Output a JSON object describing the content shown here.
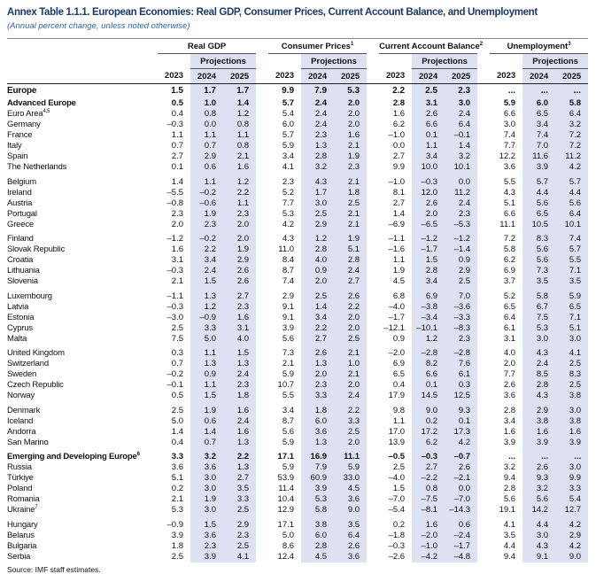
{
  "header": {
    "title": "Annex Table 1.1.1. European Economies: Real GDP, Consumer Prices, Current Account Balance, and Unemployment",
    "subtitle": "(Annual percent change, unless noted otherwise)"
  },
  "columns": [
    {
      "name": "Real GDP",
      "projections": "Projections",
      "years": [
        "2023",
        "2024",
        "2025"
      ]
    },
    {
      "name": "Consumer Prices",
      "sup": "1",
      "projections": "Projections",
      "years": [
        "2023",
        "2024",
        "2025"
      ]
    },
    {
      "name": "Current Account Balance",
      "sup": "2",
      "projections": "Projections",
      "years": [
        "2023",
        "2024",
        "2025"
      ]
    },
    {
      "name": "Unemployment",
      "sup": "3",
      "projections": "Projections",
      "years": [
        "2023",
        "2024",
        "2025"
      ]
    }
  ],
  "europe": {
    "label": "Europe",
    "values": [
      "1.5",
      "1.7",
      "1.7",
      "9.9",
      "7.9",
      "5.3",
      "2.2",
      "2.5",
      "2.3",
      "...",
      "...",
      "..."
    ]
  },
  "advanced_europe": {
    "label": "Advanced Europe",
    "values": [
      "0.5",
      "1.0",
      "1.4",
      "5.7",
      "2.4",
      "2.0",
      "2.8",
      "3.1",
      "3.0",
      "5.9",
      "6.0",
      "5.8"
    ],
    "euro_area": {
      "label": "Euro Area",
      "sup": "4,5",
      "values": [
        "0.4",
        "0.8",
        "1.2",
        "5.4",
        "2.4",
        "2.0",
        "1.6",
        "2.6",
        "2.4",
        "6.6",
        "6.5",
        "6.4"
      ],
      "groups": [
        [
          {
            "label": "Germany",
            "values": [
              "–0.3",
              "0.0",
              "0.8",
              "6.0",
              "2.4",
              "2.0",
              "6.2",
              "6.6",
              "6.4",
              "3.0",
              "3.4",
              "3.2"
            ]
          },
          {
            "label": "France",
            "values": [
              "1.1",
              "1.1",
              "1.1",
              "5.7",
              "2.3",
              "1.6",
              "–1.0",
              "0.1",
              "–0.1",
              "7.4",
              "7.4",
              "7.2"
            ]
          },
          {
            "label": "Italy",
            "values": [
              "0.7",
              "0.7",
              "0.8",
              "5.9",
              "1.3",
              "2.1",
              "0.0",
              "1.1",
              "1.4",
              "7.7",
              "7.0",
              "7.2"
            ]
          },
          {
            "label": "Spain",
            "values": [
              "2.7",
              "2.9",
              "2.1",
              "3.4",
              "2.8",
              "1.9",
              "2.7",
              "3.4",
              "3.2",
              "12.2",
              "11.6",
              "11.2"
            ]
          },
          {
            "label": "The Netherlands",
            "values": [
              "0.1",
              "0.6",
              "1.6",
              "4.1",
              "3.2",
              "2.3",
              "9.9",
              "10.0",
              "10.1",
              "3.6",
              "3.9",
              "4.2"
            ]
          }
        ],
        [
          {
            "label": "Belgium",
            "values": [
              "1.4",
              "1.1",
              "1.2",
              "2.3",
              "4.3",
              "2.1",
              "–1.0",
              "–0.3",
              "0.0",
              "5.5",
              "5.7",
              "5.7"
            ]
          },
          {
            "label": "Ireland",
            "values": [
              "–5.5",
              "–0.2",
              "2.2",
              "5.2",
              "1.7",
              "1.8",
              "8.1",
              "12.0",
              "11.2",
              "4.3",
              "4.4",
              "4.4"
            ]
          },
          {
            "label": "Austria",
            "values": [
              "–0.8",
              "–0.6",
              "1.1",
              "7.7",
              "3.0",
              "2.5",
              "2.7",
              "2.6",
              "2.4",
              "5.1",
              "5.6",
              "5.6"
            ]
          },
          {
            "label": "Portugal",
            "values": [
              "2.3",
              "1.9",
              "2.3",
              "5.3",
              "2.5",
              "2.1",
              "1.4",
              "2.0",
              "2.3",
              "6.6",
              "6.5",
              "6.4"
            ]
          },
          {
            "label": "Greece",
            "values": [
              "2.0",
              "2.3",
              "2.0",
              "4.2",
              "2.9",
              "2.1",
              "–6.9",
              "–6.5",
              "–5.3",
              "11.1",
              "10.5",
              "10.1"
            ]
          }
        ],
        [
          {
            "label": "Finland",
            "values": [
              "–1.2",
              "–0.2",
              "2.0",
              "4.3",
              "1.2",
              "1.9",
              "–1.1",
              "–1.2",
              "–1.2",
              "7.2",
              "8.3",
              "7.4"
            ]
          },
          {
            "label": "Slovak Republic",
            "values": [
              "1.6",
              "2.2",
              "1.9",
              "11.0",
              "2.8",
              "5.1",
              "–1.6",
              "–1.7",
              "–1.4",
              "5.8",
              "5.6",
              "5.7"
            ]
          },
          {
            "label": "Croatia",
            "values": [
              "3.1",
              "3.4",
              "2.9",
              "8.4",
              "4.0",
              "2.8",
              "1.1",
              "1.5",
              "0.9",
              "6.2",
              "5.6",
              "5.5"
            ]
          },
          {
            "label": "Lithuania",
            "values": [
              "–0.3",
              "2.4",
              "2.6",
              "8.7",
              "0.9",
              "2.4",
              "1.9",
              "2.8",
              "2.9",
              "6.9",
              "7.3",
              "7.1"
            ]
          },
          {
            "label": "Slovenia",
            "values": [
              "2.1",
              "1.5",
              "2.6",
              "7.4",
              "2.0",
              "2.7",
              "4.5",
              "3.4",
              "2.5",
              "3.7",
              "3.5",
              "3.5"
            ]
          }
        ],
        [
          {
            "label": "Luxembourg",
            "values": [
              "–1.1",
              "1.3",
              "2.7",
              "2.9",
              "2.5",
              "2.6",
              "6.8",
              "6.9",
              "7.0",
              "5.2",
              "5.8",
              "5.9"
            ]
          },
          {
            "label": "Latvia",
            "values": [
              "–0.3",
              "1.2",
              "2.3",
              "9.1",
              "1.4",
              "2.2",
              "–4.0",
              "–3.8",
              "–3.6",
              "6.5",
              "6.7",
              "6.5"
            ]
          },
          {
            "label": "Estonia",
            "values": [
              "–3.0",
              "–0.9",
              "1.6",
              "9.1",
              "3.4",
              "2.0",
              "–1.7",
              "–3.4",
              "–3.3",
              "6.4",
              "7.5",
              "7.1"
            ]
          },
          {
            "label": "Cyprus",
            "values": [
              "2.5",
              "3.3",
              "3.1",
              "3.9",
              "2.2",
              "2.0",
              "–12.1",
              "–10.1",
              "–8.3",
              "6.1",
              "5.3",
              "5.1"
            ]
          },
          {
            "label": "Malta",
            "values": [
              "7.5",
              "5.0",
              "4.0",
              "5.6",
              "2.7",
              "2.5",
              "0.9",
              "1.2",
              "2.3",
              "3.1",
              "3.0",
              "3.0"
            ]
          }
        ]
      ]
    },
    "groups": [
      [
        {
          "label": "United Kingdom",
          "values": [
            "0.3",
            "1.1",
            "1.5",
            "7.3",
            "2.6",
            "2.1",
            "–2.0",
            "–2.8",
            "–2.8",
            "4.0",
            "4.3",
            "4.1"
          ]
        },
        {
          "label": "Switzerland",
          "values": [
            "0.7",
            "1.3",
            "1.3",
            "2.1",
            "1.3",
            "1.0",
            "6.9",
            "8.2",
            "7.6",
            "2.0",
            "2.4",
            "2.5"
          ]
        },
        {
          "label": "Sweden",
          "values": [
            "–0.2",
            "0.9",
            "2.4",
            "5.9",
            "2.0",
            "2.1",
            "6.5",
            "6.6",
            "6.1",
            "7.7",
            "8.5",
            "8.3"
          ]
        },
        {
          "label": "Czech Republic",
          "values": [
            "–0.1",
            "1.1",
            "2.3",
            "10.7",
            "2.3",
            "2.0",
            "0.4",
            "0.1",
            "0.3",
            "2.6",
            "2.8",
            "2.5"
          ]
        },
        {
          "label": "Norway",
          "values": [
            "0.5",
            "1.5",
            "1.8",
            "5.5",
            "3.3",
            "2.4",
            "17.9",
            "14.5",
            "12.5",
            "3.6",
            "4.3",
            "3.8"
          ]
        }
      ],
      [
        {
          "label": "Denmark",
          "values": [
            "2.5",
            "1.9",
            "1.6",
            "3.4",
            "1.8",
            "2.2",
            "9.8",
            "9.0",
            "9.3",
            "2.8",
            "2.9",
            "3.0"
          ]
        },
        {
          "label": "Iceland",
          "values": [
            "5.0",
            "0.6",
            "2.4",
            "8.7",
            "6.0",
            "3.3",
            "1.1",
            "0.2",
            "0.1",
            "3.4",
            "3.8",
            "3.8"
          ]
        },
        {
          "label": "Andorra",
          "values": [
            "1.4",
            "1.4",
            "1.6",
            "5.6",
            "3.6",
            "2.5",
            "17.0",
            "17.2",
            "17.3",
            "1.6",
            "1.6",
            "1.6"
          ]
        },
        {
          "label": "San Marino",
          "values": [
            "0.4",
            "0.7",
            "1.3",
            "5.9",
            "1.3",
            "2.0",
            "13.9",
            "6.2",
            "4.2",
            "3.9",
            "3.9",
            "3.9"
          ]
        }
      ]
    ]
  },
  "emerging_europe": {
    "label": "Emerging and Developing Europe",
    "sup": "6",
    "values": [
      "3.3",
      "3.2",
      "2.2",
      "17.1",
      "16.9",
      "11.1",
      "–0.5",
      "–0.3",
      "–0.7",
      "...",
      "...",
      "..."
    ],
    "groups": [
      [
        {
          "label": "Russia",
          "values": [
            "3.6",
            "3.6",
            "1.3",
            "5.9",
            "7.9",
            "5.9",
            "2.5",
            "2.7",
            "2.6",
            "3.2",
            "2.6",
            "3.0"
          ]
        },
        {
          "label": "Türkiye",
          "values": [
            "5.1",
            "3.0",
            "2.7",
            "53.9",
            "60.9",
            "33.0",
            "–4.0",
            "–2.2",
            "–2.1",
            "9.4",
            "9.3",
            "9.9"
          ]
        },
        {
          "label": "Poland",
          "values": [
            "0.2",
            "3.0",
            "3.5",
            "11.4",
            "3.9",
            "4.5",
            "1.5",
            "0.8",
            "0.0",
            "2.8",
            "3.2",
            "3.3"
          ]
        },
        {
          "label": "Romania",
          "values": [
            "2.1",
            "1.9",
            "3.3",
            "10.4",
            "5.3",
            "3.6",
            "–7.0",
            "–7.5",
            "–7.0",
            "5.6",
            "5.6",
            "5.4"
          ]
        },
        {
          "label": "Ukraine",
          "sup": "7",
          "values": [
            "5.3",
            "3.0",
            "2.5",
            "12.9",
            "5.8",
            "9.0",
            "–5.4",
            "–8.1",
            "–14.3",
            "19.1",
            "14.2",
            "12.7"
          ]
        }
      ],
      [
        {
          "label": "Hungary",
          "values": [
            "–0.9",
            "1.5",
            "2.9",
            "17.1",
            "3.8",
            "3.5",
            "0.2",
            "1.6",
            "0.6",
            "4.1",
            "4.4",
            "4.2"
          ]
        },
        {
          "label": "Belarus",
          "values": [
            "3.9",
            "3.6",
            "2.3",
            "5.0",
            "6.0",
            "6.4",
            "–1.8",
            "–2.0",
            "–2.4",
            "3.5",
            "3.0",
            "2.9"
          ]
        },
        {
          "label": "Bulgaria",
          "values": [
            "1.8",
            "2.3",
            "2.5",
            "8.6",
            "2.8",
            "2.6",
            "–0.3",
            "–1.0",
            "–1.7",
            "4.4",
            "4.3",
            "4.2"
          ]
        },
        {
          "label": "Serbia",
          "values": [
            "2.5",
            "3.9",
            "4.1",
            "12.4",
            "4.5",
            "3.6",
            "–2.6",
            "–4.2",
            "–4.8",
            "9.4",
            "9.1",
            "9.0"
          ]
        }
      ]
    ]
  },
  "footer": {
    "source": "Source: IMF staff estimates."
  }
}
